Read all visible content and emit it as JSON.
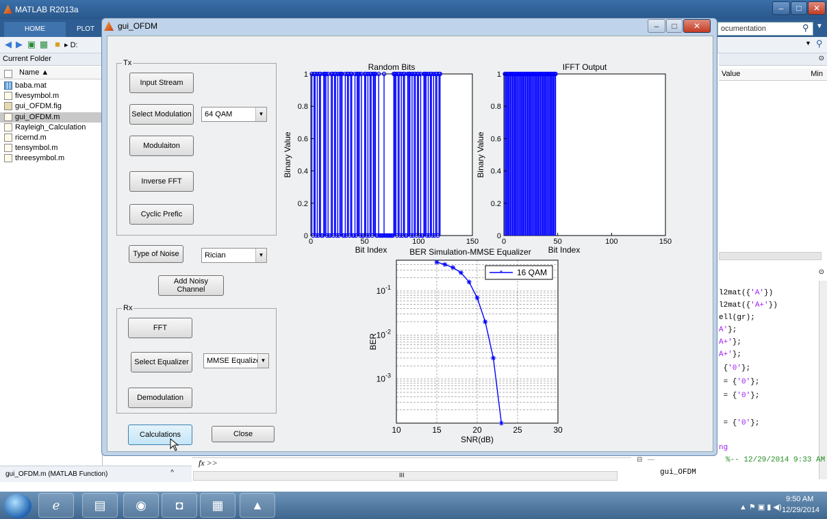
{
  "main_window": {
    "title": "MATLAB R2013a",
    "tabs": [
      "HOME",
      "PLOT"
    ],
    "search_placeholder": "ocumentation",
    "address": "D:",
    "current_folder_header": "Current Folder",
    "name_col": "Name ▲",
    "files": [
      "baba.mat",
      "fivesymbol.m",
      "gui_OFDM.fig",
      "gui_OFDM.m",
      "Rayleigh_Calculation",
      "ricernd.m",
      "tensymbol.m",
      "threesymbol.m"
    ],
    "selected_file_index": 3,
    "workspace_cols": {
      "value": "Value",
      "min": "Min"
    },
    "details": "gui_OFDM.m (MATLAB Function)",
    "prompt": "fx >>",
    "scroll_mark": "III"
  },
  "code_lines": [
    [
      "l2mat({",
      "'A'",
      "})"
    ],
    [
      "l2mat({",
      "'A+'",
      "})"
    ],
    [
      "ell(gr);",
      "",
      ""
    ],
    [
      "",
      "A'",
      "};"
    ],
    [
      "",
      "A+'",
      "};"
    ],
    [
      "",
      "A+'",
      "};"
    ],
    [
      " {",
      "'0'",
      "};"
    ],
    [
      " = {",
      "'0'",
      "};"
    ],
    [
      " = {",
      "'0'",
      "};"
    ],
    [
      "",
      "",
      ""
    ],
    [
      " = {",
      "'0'",
      "};"
    ]
  ],
  "history": {
    "tail": "ng",
    "session": "%-- 12/29/2014 9:33 AM --%",
    "entry": "gui_OFDM"
  },
  "figure": {
    "title": "gui_OFDM",
    "tx_label": "Tx",
    "rx_label": "Rx",
    "buttons": {
      "input_stream": "Input Stream",
      "select_modulation": "Select Modulation",
      "modulation": "Modulaiton",
      "inverse_fft": "Inverse FFT",
      "cyclic_prefix": "Cyclic Prefic",
      "type_of_noise": "Type of Noise",
      "add_noisy_channel": "Add Noisy Channel",
      "fft": "FFT",
      "select_equalizer": "Select Equalizer",
      "demodulation": "Demodulation",
      "calculations": "Calculations",
      "close": "Close"
    },
    "selects": {
      "modulation": "64 QAM",
      "noise": "Rician",
      "equalizer": "MMSE Equalizer"
    }
  },
  "taskbar": {
    "time": "9:50 AM",
    "date": "12/29/2014"
  },
  "chart_data": [
    {
      "type": "bar",
      "title": "Random Bits",
      "xlabel": "Bit Index",
      "ylabel": "Binary Value",
      "xlim": [
        0,
        150
      ],
      "ylim": [
        0,
        1
      ],
      "xticks": [
        0,
        50,
        100,
        150
      ],
      "yticks": [
        0,
        0.2,
        0.4,
        0.6,
        0.8,
        1
      ],
      "x_range": [
        1,
        120
      ],
      "values": [
        1,
        0,
        1,
        1,
        0,
        1,
        0,
        1,
        1,
        0,
        0,
        1,
        1,
        1,
        0,
        1,
        0,
        0,
        1,
        1,
        0,
        1,
        1,
        0,
        1,
        0,
        1,
        1,
        1,
        0,
        0,
        1,
        0,
        1,
        1,
        0,
        1,
        1,
        0,
        0,
        1,
        0,
        1,
        1,
        1,
        0,
        1,
        0,
        0,
        1,
        1,
        0,
        1,
        0,
        1,
        1,
        0,
        1,
        1,
        1,
        0,
        0,
        1,
        0,
        0,
        0,
        0,
        1,
        0,
        0,
        0,
        0,
        0,
        0,
        0,
        0,
        1,
        1,
        1,
        0,
        1,
        1,
        0,
        1,
        0,
        1,
        1,
        0,
        0,
        1,
        1,
        1,
        0,
        1,
        0,
        1,
        1,
        0,
        1,
        1,
        0,
        1,
        0,
        0,
        1,
        1,
        1,
        0,
        1,
        0,
        1,
        1,
        0,
        1,
        0,
        1,
        1,
        0,
        1,
        1
      ],
      "color": "#0000ff"
    },
    {
      "type": "bar",
      "title": "IFFT Output",
      "xlabel": "Bit Index",
      "ylabel": "Binary Value",
      "xlim": [
        0,
        150
      ],
      "ylim": [
        0,
        1
      ],
      "xticks": [
        0,
        50,
        100,
        150
      ],
      "yticks": [
        0,
        0.2,
        0.4,
        0.6,
        0.8,
        1
      ],
      "x_range": [
        1,
        48
      ],
      "values": [
        1,
        1,
        1,
        1,
        1,
        1,
        1,
        1,
        1,
        1,
        1,
        1,
        1,
        1,
        1,
        1,
        1,
        1,
        1,
        1,
        1,
        1,
        1,
        1,
        1,
        1,
        1,
        1,
        1,
        1,
        1,
        1,
        1,
        1,
        1,
        1,
        1,
        1,
        1,
        1,
        1,
        1,
        1,
        1,
        1,
        1,
        1,
        1
      ],
      "color": "#0000ff"
    },
    {
      "type": "line",
      "title": "BER Simulation-MMSE Equalizer",
      "xlabel": "SNR(dB)",
      "ylabel": "BER",
      "yscale": "log",
      "xlim": [
        10,
        30
      ],
      "ylim": [
        0.0001,
        0.5
      ],
      "xticks": [
        10,
        15,
        20,
        25,
        30
      ],
      "ytick_labels": [
        "10^-1",
        "10^-2",
        "10^-3"
      ],
      "grid": true,
      "legend_position": "top-right",
      "series": [
        {
          "name": "16 QAM",
          "x": [
            15,
            16,
            17,
            18,
            19,
            20,
            21,
            22,
            23
          ],
          "y": [
            0.45,
            0.4,
            0.34,
            0.26,
            0.16,
            0.07,
            0.02,
            0.003,
            0.0001
          ]
        }
      ],
      "color": "#0000ff"
    }
  ]
}
